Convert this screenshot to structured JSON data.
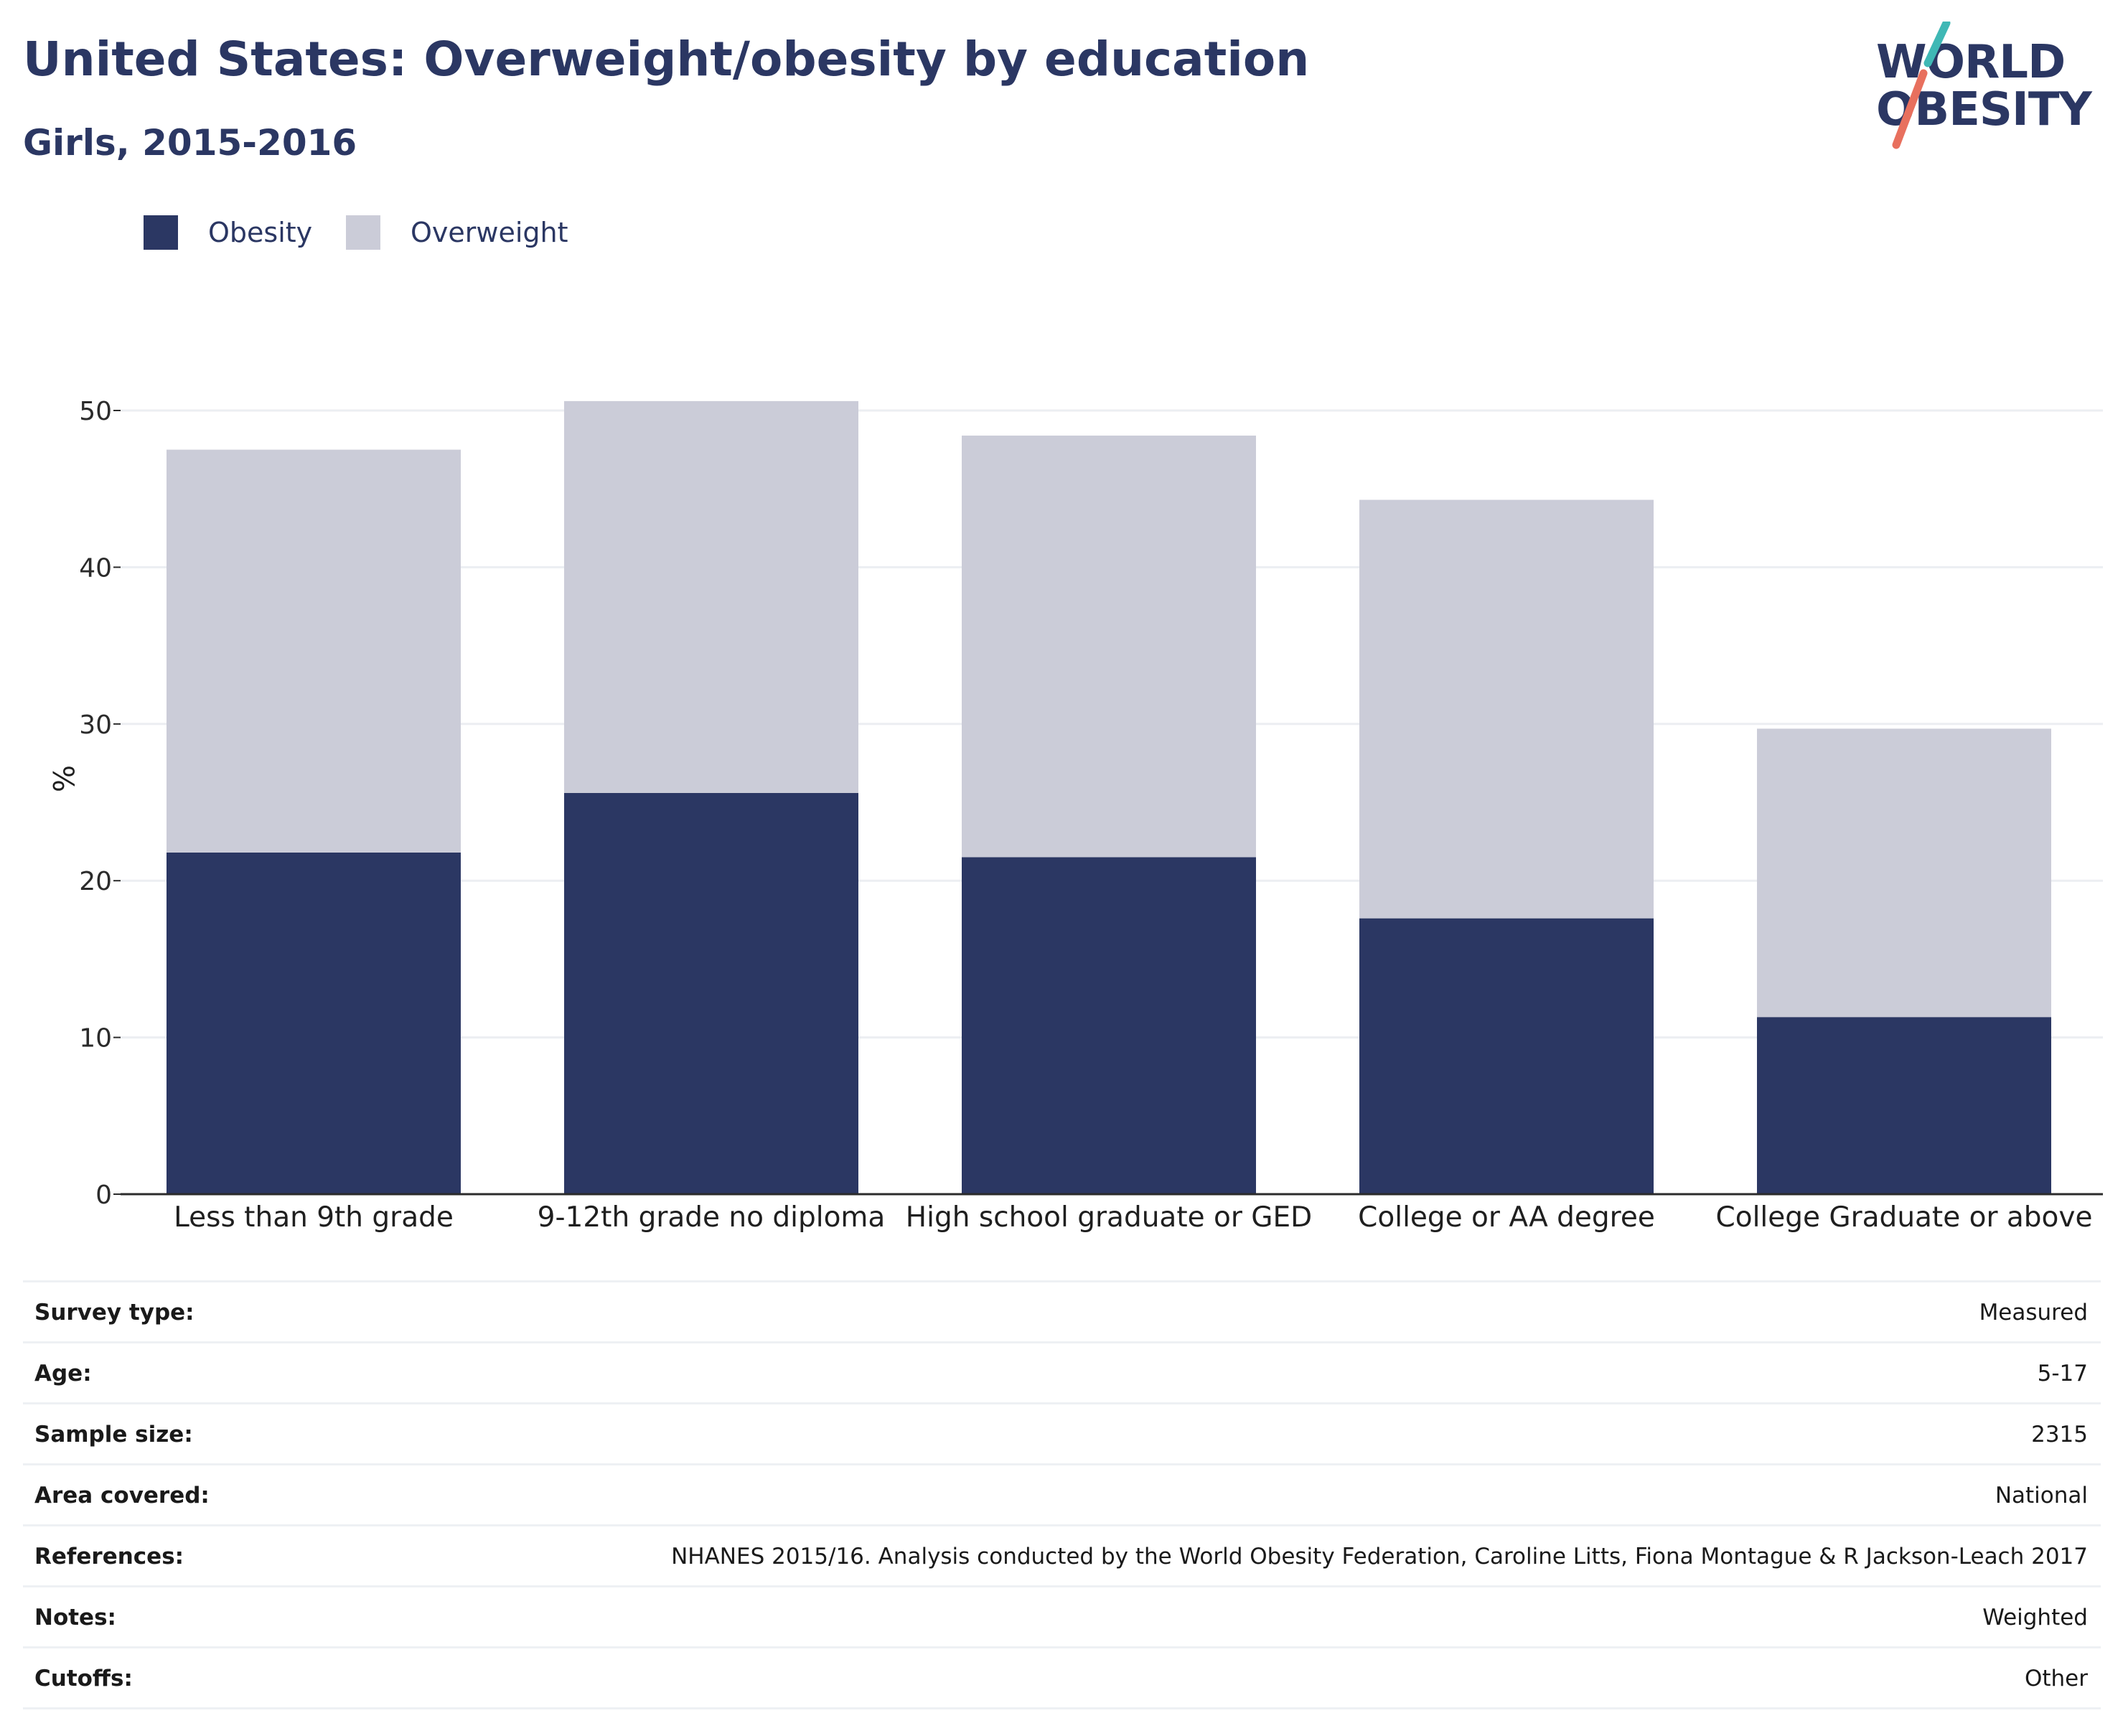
{
  "header": {
    "title": "United States: Overweight/obesity by education",
    "subtitle": "Girls, 2015-2016"
  },
  "logo": {
    "line1": "WORLD",
    "line2": "OBESITY",
    "accent_teal": "#3fb8b5",
    "accent_coral": "#e8705e"
  },
  "colors": {
    "obesity": "#2b3763",
    "overweight": "#cbccd8",
    "grid": "#eceef2",
    "axis": "#2b2b2b"
  },
  "legend": {
    "items": [
      {
        "label": "Obesity",
        "color": "#2b3763"
      },
      {
        "label": "Overweight",
        "color": "#cbccd8"
      }
    ]
  },
  "chart_data": {
    "type": "bar",
    "stacked": true,
    "ylabel": "%",
    "ylim": [
      0,
      55
    ],
    "yticks": [
      0,
      10,
      20,
      30,
      40,
      50
    ],
    "grid": true,
    "legend_position": "top-left",
    "categories": [
      "Less than 9th grade",
      "9-12th grade no diploma",
      "High school graduate or GED",
      "College or AA degree",
      "College Graduate or above"
    ],
    "series": [
      {
        "name": "Obesity",
        "color": "#2b3763",
        "values": [
          21.8,
          25.6,
          21.5,
          17.6,
          11.3
        ]
      },
      {
        "name": "Overweight",
        "color": "#cbccd8",
        "values": [
          25.7,
          25.0,
          26.9,
          26.7,
          18.4
        ]
      }
    ]
  },
  "meta": {
    "rows": [
      {
        "key": "Survey type:",
        "value": "Measured"
      },
      {
        "key": "Age:",
        "value": "5-17"
      },
      {
        "key": "Sample size:",
        "value": "2315"
      },
      {
        "key": "Area covered:",
        "value": "National"
      },
      {
        "key": "References:",
        "value": "NHANES 2015/16. Analysis conducted by the World Obesity Federation, Caroline Litts, Fiona Montague & R Jackson-Leach 2017"
      },
      {
        "key": "Notes:",
        "value": "Weighted"
      },
      {
        "key": "Cutoffs:",
        "value": "Other"
      }
    ]
  }
}
